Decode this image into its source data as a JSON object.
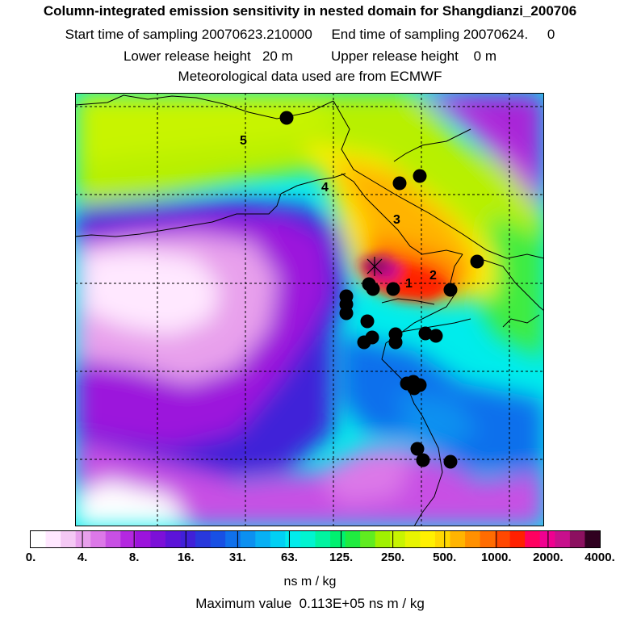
{
  "header": {
    "title": "Column-integrated emission sensitivity in nested domain for Shangdianzi_200706",
    "line2": "Start time of sampling 20070623.210000     End time of sampling 20070624.     0",
    "line3": "Lower release height   20 m          Upper release height    0 m",
    "line4": "Meteorological data used are from ECMWF"
  },
  "map": {
    "track_labels": [
      "5",
      "4",
      "3",
      "2",
      "1"
    ],
    "station_marker": "star-cross"
  },
  "colorbar": {
    "tick_labels": [
      "0.",
      "4.",
      "8.",
      "16.",
      "31.",
      "63.",
      "125.",
      "250.",
      "500.",
      "1000.",
      "2000.",
      "4000."
    ],
    "colors": [
      "#ffffff",
      "#ffe8ff",
      "#f4c8f4",
      "#e8a0ec",
      "#dc78e8",
      "#c850e4",
      "#b428e0",
      "#9c14dc",
      "#7c10d8",
      "#5c14d8",
      "#4020d8",
      "#2838dc",
      "#1850e4",
      "#1070ec",
      "#0c90f0",
      "#08b0f4",
      "#00d0f4",
      "#00ecec",
      "#00f4d0",
      "#00f4a0",
      "#00f070",
      "#20ec40",
      "#60ec20",
      "#a0f000",
      "#c8f400",
      "#e8f400",
      "#fff000",
      "#ffd800",
      "#ffb400",
      "#ff9000",
      "#ff6c00",
      "#ff4800",
      "#ff2000",
      "#ff0060",
      "#f00090",
      "#c8108c",
      "#8c1060",
      "#300020"
    ],
    "units": "ns m / kg"
  },
  "footer": {
    "max_value": "Maximum value  0.113E+05 ns m / kg"
  }
}
